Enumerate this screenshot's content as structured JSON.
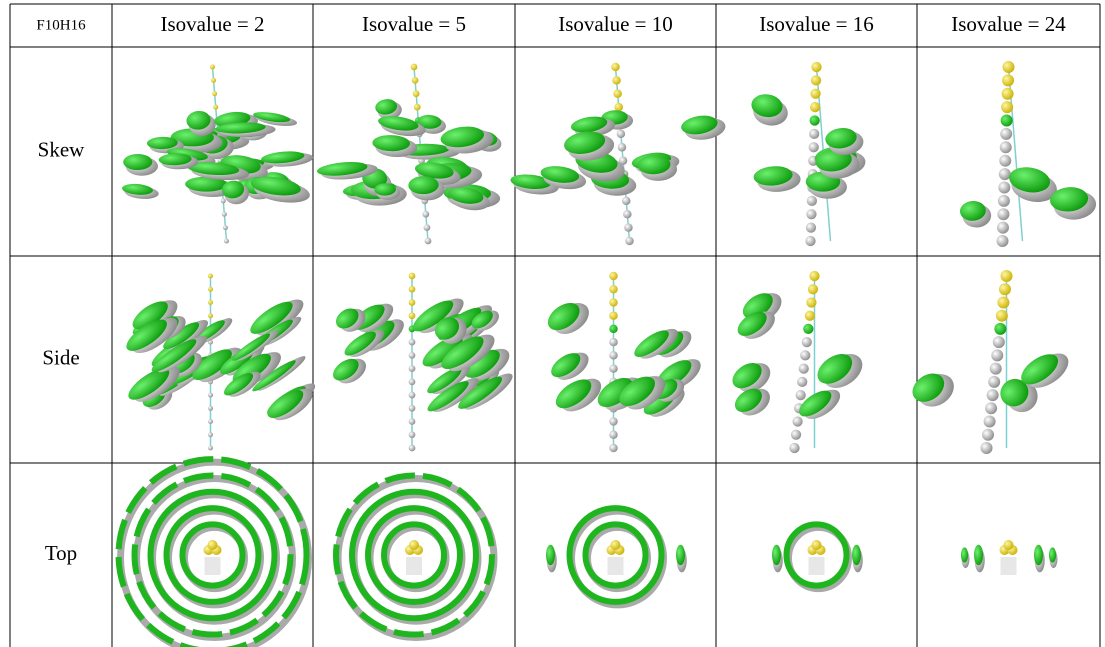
{
  "table": {
    "header": [
      "F10H16",
      "Isovalue = 2",
      "Isovalue = 5",
      "Isovalue = 10",
      "Isovalue = 16",
      "Isovalue = 24"
    ],
    "rows": [
      "Skew",
      "Side",
      "Top"
    ]
  }
}
